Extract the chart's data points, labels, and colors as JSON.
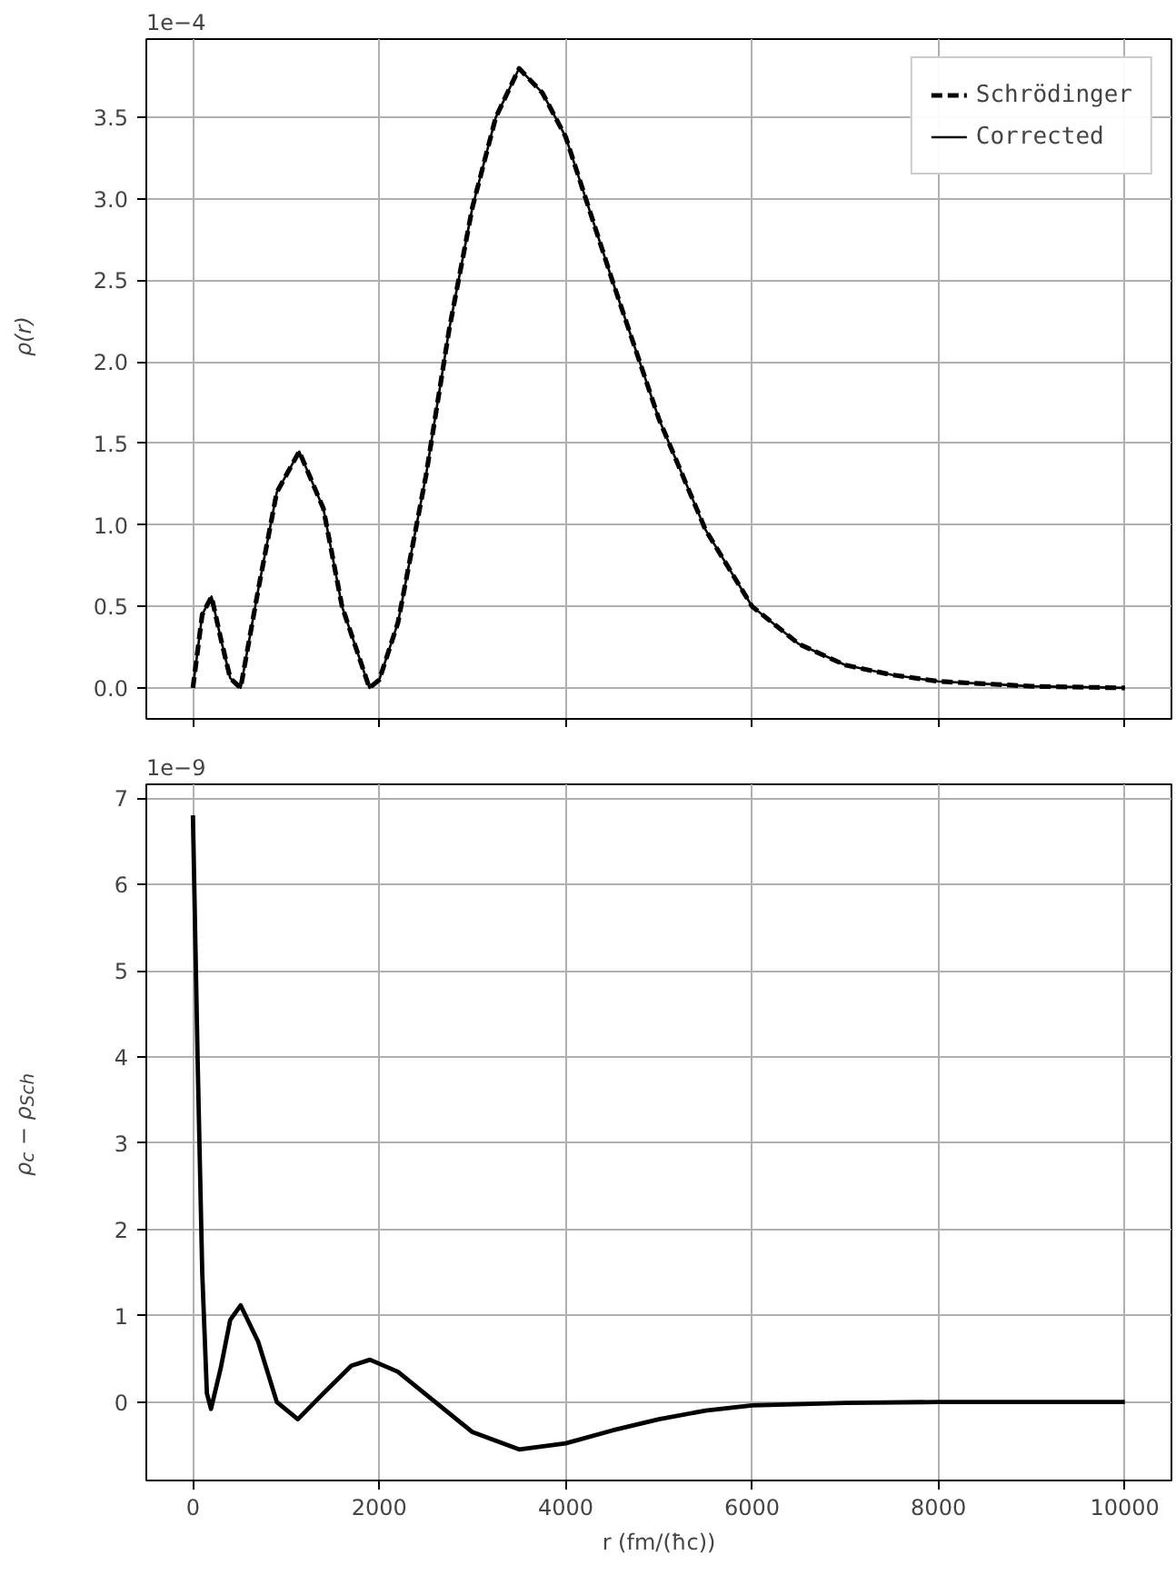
{
  "chart_data": [
    {
      "type": "line",
      "ylabel": "ρ(r)",
      "annotations": [
        "1e−4"
      ],
      "legend": "top right",
      "grid": true,
      "tick_labels": "y",
      "xlim": [
        -500,
        10500
      ],
      "xticks": [
        0,
        2000,
        4000,
        6000,
        8000,
        10000
      ],
      "ylim": [
        -0.19,
        3.98
      ],
      "yticks": [
        {
          "value": 0,
          "label": "0.0"
        },
        0.5,
        {
          "value": 1,
          "label": "1.0"
        },
        1.5,
        {
          "value": 2,
          "label": "2.0"
        },
        2.5,
        {
          "value": 3,
          "label": "3.0"
        },
        3.5
      ],
      "x": [
        0,
        100,
        200,
        300,
        400,
        512,
        700,
        900,
        1141,
        1400,
        1600,
        1894,
        2000,
        2200,
        2500,
        2750,
        3000,
        3250,
        3500,
        3750,
        4000,
        4500,
        5000,
        5500,
        6000,
        6500,
        7000,
        7500,
        8000,
        9000,
        10000
      ],
      "series": [
        {
          "name": "Schrödinger",
          "color": "#000000",
          "line_style": "dashed",
          "values": [
            0,
            0.45,
            0.56,
            0.3,
            0.06,
            0,
            0.6,
            1.2,
            1.45,
            1.1,
            0.5,
            0,
            0.05,
            0.4,
            1.3,
            2.2,
            2.95,
            3.5,
            3.8,
            3.65,
            3.38,
            2.5,
            1.65,
            0.97,
            0.5,
            0.27,
            0.14,
            0.08,
            0.04,
            0.01,
            0
          ]
        },
        {
          "name": "Corrected",
          "color": "#000000",
          "line_style": "solid",
          "values": [
            0,
            0.45,
            0.56,
            0.3,
            0.06,
            0,
            0.6,
            1.2,
            1.45,
            1.1,
            0.5,
            0,
            0.05,
            0.4,
            1.3,
            2.2,
            2.95,
            3.5,
            3.8,
            3.65,
            3.38,
            2.5,
            1.65,
            0.97,
            0.5,
            0.27,
            0.14,
            0.08,
            0.04,
            0.01,
            0
          ]
        }
      ]
    },
    {
      "type": "line",
      "ylabel": "ρ$_{c}$ − ρ$_{Sch}$",
      "xlabel": "r (fm/(ħc))",
      "annotations": [
        "1e−9"
      ],
      "grid": true,
      "xlim": [
        -500,
        10500
      ],
      "xticks": [
        0,
        2000,
        4000,
        6000,
        8000,
        10000
      ],
      "ylim": [
        -0.91,
        7.16
      ],
      "yticks": [
        0,
        1,
        2,
        3,
        4,
        5,
        6,
        7
      ],
      "x": [
        0,
        50,
        100,
        150,
        194,
        300,
        400,
        512,
        700,
        900,
        1126,
        1400,
        1700,
        1900,
        2200,
        2600,
        3000,
        3500,
        4000,
        4500,
        5000,
        5500,
        6000,
        7000,
        8000,
        10000
      ],
      "series": [
        {
          "color": "#000000",
          "line_style": "solid",
          "values": [
            6.8,
            4.0,
            1.5,
            0.1,
            -0.08,
            0.4,
            0.95,
            1.12,
            0.7,
            0.0,
            -0.2,
            0.1,
            0.42,
            0.49,
            0.35,
            0.0,
            -0.35,
            -0.55,
            -0.48,
            -0.33,
            -0.2,
            -0.1,
            -0.04,
            -0.01,
            0,
            0
          ]
        }
      ]
    }
  ]
}
